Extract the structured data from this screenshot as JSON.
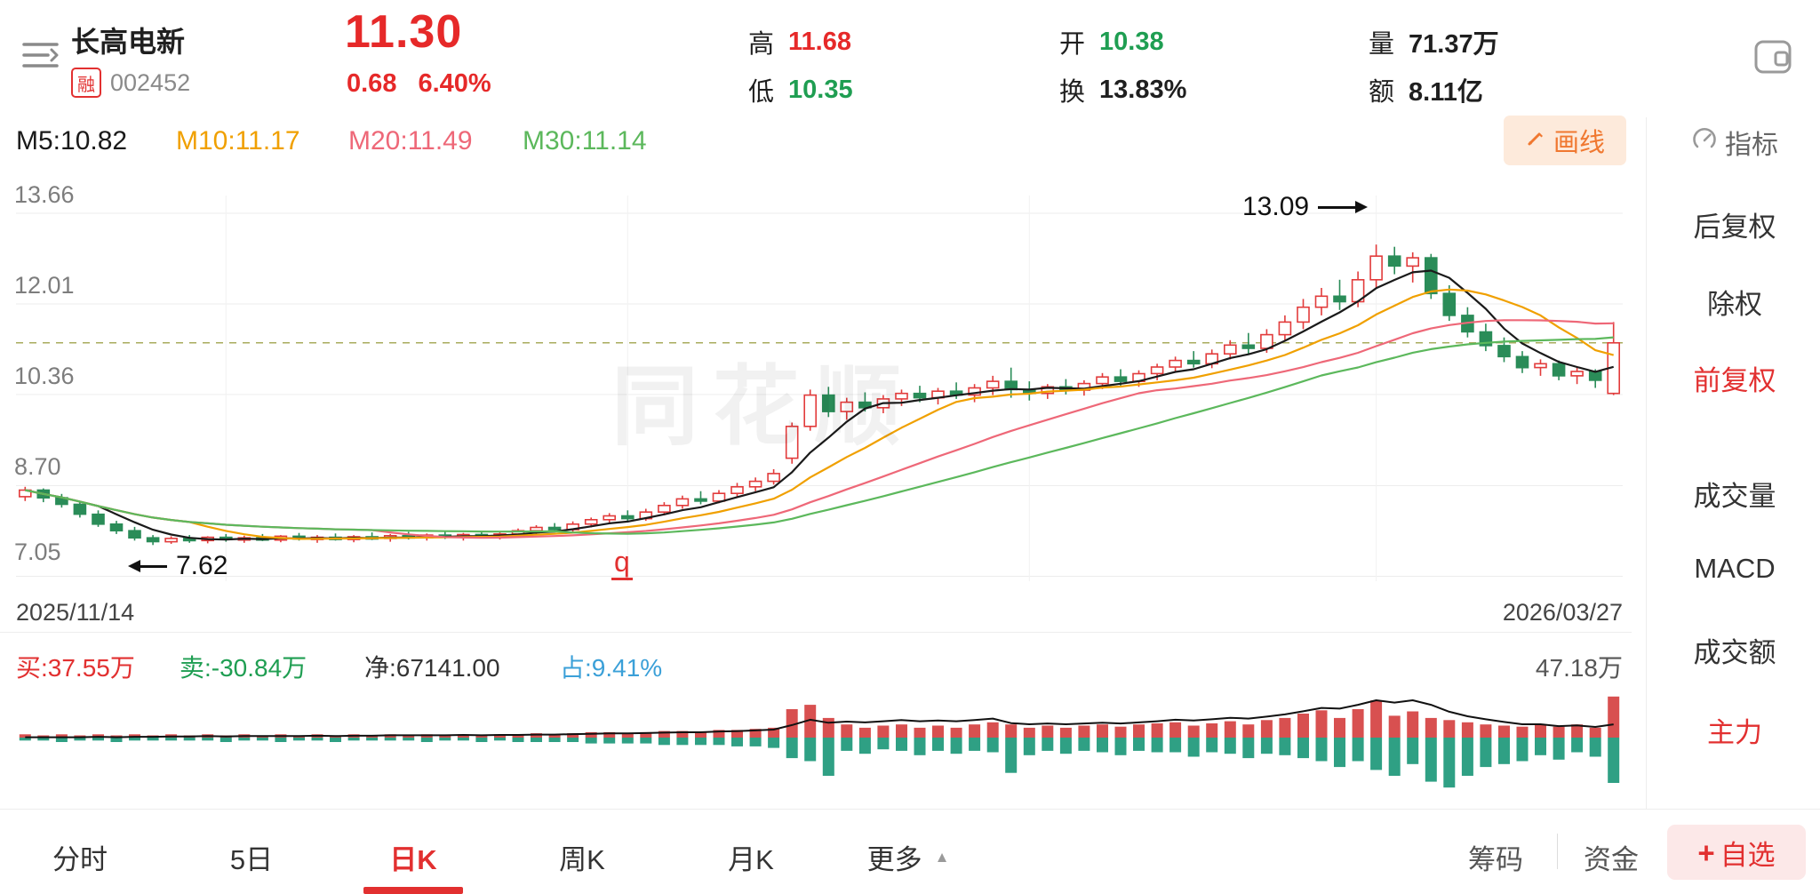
{
  "header": {
    "stock_name": "长高电新",
    "margin_badge": "融",
    "stock_code": "002452",
    "price": "11.30",
    "change_value": "0.68",
    "change_percent": "6.40%",
    "stats": {
      "high_label": "高",
      "high_value": "11.68",
      "low_label": "低",
      "low_value": "10.35",
      "open_label": "开",
      "open_value": "10.38",
      "turnover_label": "换",
      "turnover_value": "13.83%",
      "volume_label": "量",
      "volume_value": "71.37万",
      "amount_label": "额",
      "amount_value": "8.11亿"
    }
  },
  "ma_bar": {
    "m5": "M5:10.82",
    "m10": "M10:11.17",
    "m20": "M20:11.49",
    "m30": "M30:11.14",
    "draw_button": "画线"
  },
  "sidebar": {
    "indicator": "指标",
    "items": [
      {
        "label": "后复权"
      },
      {
        "label": "除权"
      },
      {
        "label": "前复权"
      },
      {
        "label": "成交量"
      },
      {
        "label": "MACD"
      },
      {
        "label": "成交额"
      },
      {
        "label": "主力"
      }
    ]
  },
  "chart": {
    "watermark": "同花顺",
    "start_date": "2025/11/14",
    "end_date": "2026/03/27",
    "peak_annotation": "13.09",
    "low_annotation": "7.62",
    "event_marker": "q"
  },
  "funds_bar": {
    "buy": "买:37.55万",
    "sell": "卖:-30.84万",
    "net": "净:67141.00",
    "ratio": "占:9.41%",
    "scale_max": "47.18万"
  },
  "footer": {
    "tabs": [
      {
        "label": "分时"
      },
      {
        "label": "5日"
      },
      {
        "label": "日K"
      },
      {
        "label": "周K"
      },
      {
        "label": "月K"
      },
      {
        "label": "更多"
      }
    ],
    "chips": "筹码",
    "funds": "资金",
    "watchlist": "自选"
  },
  "chart_data": {
    "type": "candlestick",
    "title": "长高电新 002452 日K 前复权",
    "x_range": [
      "2025/11/14",
      "2026/03/27"
    ],
    "y_axis_labels": [
      "13.66",
      "12.01",
      "10.36",
      "8.70",
      "7.05"
    ],
    "grid_prices": [
      13.66,
      12.01,
      10.36,
      8.7,
      7.05
    ],
    "axis_top": 13.66,
    "axis_bottom": 7.05,
    "last_close": 11.3,
    "annotated_high": 13.09,
    "annotated_low": 7.62,
    "event_marker_index": 33,
    "month_grid_indices": [
      11,
      33,
      55,
      74
    ],
    "ma_values": {
      "m5": 10.82,
      "m10": 11.17,
      "m20": 11.49,
      "m30": 11.14
    },
    "candles": [
      [
        8.5,
        8.68,
        8.42,
        8.62
      ],
      [
        8.62,
        8.65,
        8.4,
        8.48
      ],
      [
        8.48,
        8.55,
        8.3,
        8.36
      ],
      [
        8.36,
        8.42,
        8.12,
        8.18
      ],
      [
        8.18,
        8.25,
        7.95,
        8.0
      ],
      [
        8.0,
        8.06,
        7.82,
        7.88
      ],
      [
        7.88,
        7.95,
        7.7,
        7.75
      ],
      [
        7.75,
        7.8,
        7.62,
        7.68
      ],
      [
        7.68,
        7.78,
        7.64,
        7.74
      ],
      [
        7.74,
        7.8,
        7.66,
        7.7
      ],
      [
        7.7,
        7.78,
        7.65,
        7.76
      ],
      [
        7.76,
        7.82,
        7.68,
        7.72
      ],
      [
        7.72,
        7.79,
        7.66,
        7.75
      ],
      [
        7.75,
        7.82,
        7.69,
        7.71
      ],
      [
        7.71,
        7.8,
        7.67,
        7.78
      ],
      [
        7.78,
        7.84,
        7.7,
        7.73
      ],
      [
        7.73,
        7.8,
        7.66,
        7.76
      ],
      [
        7.76,
        7.83,
        7.7,
        7.72
      ],
      [
        7.72,
        7.8,
        7.67,
        7.77
      ],
      [
        7.77,
        7.85,
        7.71,
        7.74
      ],
      [
        7.74,
        7.82,
        7.68,
        7.79
      ],
      [
        7.79,
        7.86,
        7.72,
        7.75
      ],
      [
        7.75,
        7.83,
        7.7,
        7.8
      ],
      [
        7.8,
        7.88,
        7.73,
        7.76
      ],
      [
        7.76,
        7.84,
        7.7,
        7.81
      ],
      [
        7.81,
        7.88,
        7.74,
        7.78
      ],
      [
        7.78,
        7.85,
        7.72,
        7.82
      ],
      [
        7.82,
        7.92,
        7.76,
        7.88
      ],
      [
        7.88,
        7.98,
        7.82,
        7.94
      ],
      [
        7.94,
        8.02,
        7.86,
        7.9
      ],
      [
        7.9,
        8.05,
        7.85,
        8.0
      ],
      [
        8.0,
        8.12,
        7.94,
        8.08
      ],
      [
        8.08,
        8.2,
        8.0,
        8.15
      ],
      [
        8.15,
        8.25,
        8.05,
        8.1
      ],
      [
        8.1,
        8.28,
        8.06,
        8.22
      ],
      [
        8.22,
        8.4,
        8.16,
        8.34
      ],
      [
        8.34,
        8.52,
        8.28,
        8.46
      ],
      [
        8.46,
        8.6,
        8.36,
        8.42
      ],
      [
        8.42,
        8.62,
        8.38,
        8.56
      ],
      [
        8.56,
        8.75,
        8.5,
        8.68
      ],
      [
        8.68,
        8.85,
        8.6,
        8.78
      ],
      [
        8.78,
        9.0,
        8.72,
        8.92
      ],
      [
        9.2,
        9.85,
        9.1,
        9.78
      ],
      [
        9.78,
        10.45,
        9.7,
        10.35
      ],
      [
        10.35,
        10.5,
        9.95,
        10.05
      ],
      [
        10.05,
        10.3,
        9.9,
        10.22
      ],
      [
        10.22,
        10.4,
        10.05,
        10.12
      ],
      [
        10.12,
        10.35,
        10.02,
        10.28
      ],
      [
        10.28,
        10.45,
        10.15,
        10.38
      ],
      [
        10.38,
        10.52,
        10.22,
        10.3
      ],
      [
        10.3,
        10.48,
        10.18,
        10.42
      ],
      [
        10.42,
        10.58,
        10.28,
        10.35
      ],
      [
        10.35,
        10.55,
        10.22,
        10.48
      ],
      [
        10.48,
        10.7,
        10.35,
        10.6
      ],
      [
        10.6,
        10.85,
        10.3,
        10.45
      ],
      [
        10.45,
        10.6,
        10.25,
        10.38
      ],
      [
        10.38,
        10.55,
        10.28,
        10.5
      ],
      [
        10.5,
        10.64,
        10.36,
        10.44
      ],
      [
        10.44,
        10.62,
        10.34,
        10.56
      ],
      [
        10.56,
        10.75,
        10.46,
        10.68
      ],
      [
        10.68,
        10.82,
        10.52,
        10.6
      ],
      [
        10.6,
        10.8,
        10.5,
        10.74
      ],
      [
        10.74,
        10.92,
        10.62,
        10.86
      ],
      [
        10.86,
        11.05,
        10.76,
        10.98
      ],
      [
        10.98,
        11.15,
        10.85,
        10.92
      ],
      [
        10.92,
        11.18,
        10.84,
        11.1
      ],
      [
        11.1,
        11.35,
        11.0,
        11.26
      ],
      [
        11.26,
        11.48,
        11.1,
        11.2
      ],
      [
        11.2,
        11.55,
        11.12,
        11.45
      ],
      [
        11.45,
        11.8,
        11.35,
        11.68
      ],
      [
        11.68,
        12.1,
        11.55,
        11.95
      ],
      [
        11.95,
        12.3,
        11.8,
        12.15
      ],
      [
        12.15,
        12.45,
        11.9,
        12.05
      ],
      [
        12.05,
        12.6,
        11.95,
        12.45
      ],
      [
        12.45,
        13.09,
        12.3,
        12.88
      ],
      [
        12.88,
        13.05,
        12.55,
        12.7
      ],
      [
        12.7,
        12.95,
        12.4,
        12.85
      ],
      [
        12.85,
        12.92,
        12.1,
        12.2
      ],
      [
        12.2,
        12.35,
        11.7,
        11.8
      ],
      [
        11.8,
        11.95,
        11.4,
        11.5
      ],
      [
        11.5,
        11.65,
        11.15,
        11.25
      ],
      [
        11.25,
        11.4,
        10.95,
        11.05
      ],
      [
        11.05,
        11.15,
        10.75,
        10.85
      ],
      [
        10.85,
        11.0,
        10.7,
        10.92
      ],
      [
        10.92,
        10.98,
        10.62,
        10.7
      ],
      [
        10.7,
        10.85,
        10.55,
        10.78
      ],
      [
        10.78,
        10.82,
        10.48,
        10.62
      ],
      [
        10.38,
        11.68,
        10.35,
        11.3
      ]
    ],
    "funds_flow": {
      "unit": "万",
      "scale_max": 47.18,
      "today_buy": 37.55,
      "today_sell": 30.84,
      "buy": [
        3,
        2,
        3,
        2,
        3,
        2,
        3,
        2,
        3,
        2,
        3,
        2,
        3,
        2,
        3,
        2,
        3,
        2,
        3,
        2,
        3,
        2,
        3,
        2,
        3,
        2,
        3,
        3,
        4,
        3,
        4,
        5,
        5,
        4,
        5,
        6,
        6,
        5,
        7,
        7,
        8,
        9,
        26,
        30,
        18,
        12,
        9,
        11,
        12,
        9,
        11,
        9,
        12,
        14,
        12,
        9,
        11,
        9,
        11,
        12,
        10,
        12,
        13,
        14,
        11,
        13,
        15,
        12,
        16,
        18,
        22,
        25,
        18,
        26,
        34,
        20,
        24,
        18,
        16,
        14,
        12,
        11,
        10,
        12,
        10,
        12,
        9,
        37.55
      ],
      "sell": [
        2,
        2,
        3,
        2,
        2,
        3,
        2,
        2,
        2,
        2,
        2,
        3,
        2,
        2,
        3,
        2,
        2,
        3,
        2,
        2,
        2,
        2,
        3,
        2,
        2,
        3,
        2,
        3,
        3,
        3,
        3,
        4,
        4,
        4,
        4,
        5,
        5,
        5,
        5,
        6,
        6,
        7,
        14,
        16,
        26,
        9,
        11,
        8,
        9,
        12,
        9,
        11,
        9,
        10,
        24,
        12,
        9,
        11,
        9,
        10,
        12,
        9,
        10,
        10,
        13,
        10,
        11,
        14,
        11,
        12,
        14,
        16,
        20,
        16,
        22,
        26,
        18,
        30,
        34,
        26,
        20,
        18,
        16,
        12,
        15,
        10,
        13,
        30.84
      ]
    }
  },
  "colors": {
    "up": "#e23b3b",
    "down": "#2a8c58",
    "ma5": "#1a1a1a",
    "ma10": "#f0a000",
    "ma20": "#ee6878",
    "ma30": "#5cb85c",
    "flow_in": "#d85050",
    "flow_out": "#2fa084",
    "price_line": "#a8ab5e",
    "net_line": "#111111",
    "accent_red": "#e23030",
    "accent_green": "#1f9e52",
    "ratio_blue": "#3ba0d8"
  }
}
